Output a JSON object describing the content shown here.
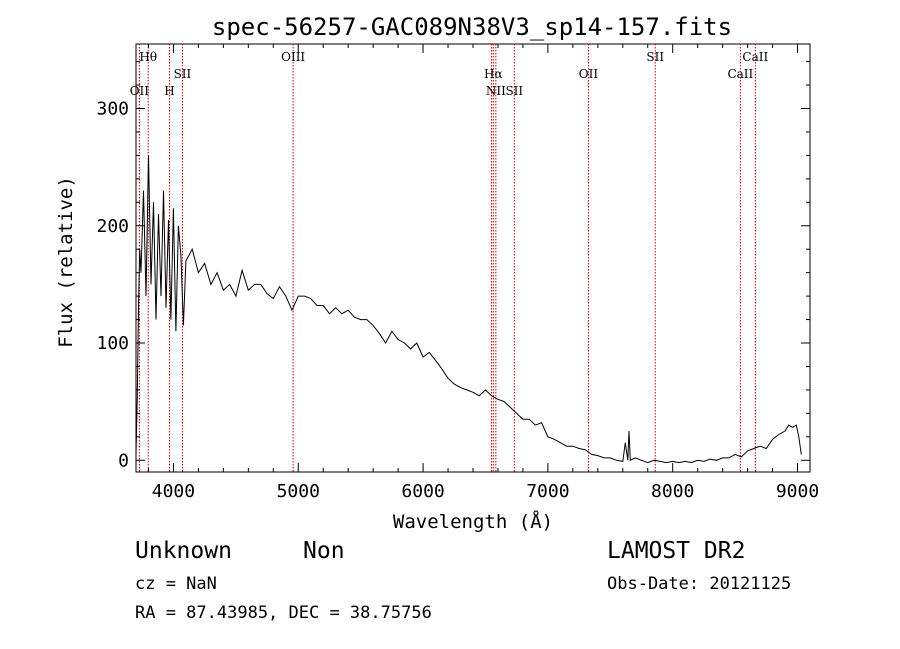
{
  "chart_data": {
    "type": "line",
    "title": "spec-56257-GAC089N38V3_sp14-157.fits",
    "xlabel": "Wavelength (Å)",
    "ylabel": "Flux (relative)",
    "xlim": [
      3700,
      9100
    ],
    "ylim": [
      -10,
      355
    ],
    "xticks": [
      4000,
      5000,
      6000,
      7000,
      8000,
      9000
    ],
    "yticks": [
      0,
      100,
      200,
      300
    ],
    "spectrum": {
      "x": [
        3700,
        3710,
        3720,
        3730,
        3740,
        3760,
        3780,
        3800,
        3820,
        3840,
        3860,
        3880,
        3900,
        3920,
        3940,
        3960,
        3980,
        4000,
        4020,
        4040,
        4060,
        4080,
        4100,
        4150,
        4200,
        4250,
        4300,
        4350,
        4400,
        4450,
        4500,
        4550,
        4600,
        4650,
        4700,
        4750,
        4800,
        4850,
        4900,
        4950,
        5000,
        5050,
        5100,
        5150,
        5200,
        5250,
        5300,
        5350,
        5400,
        5450,
        5500,
        5550,
        5600,
        5650,
        5700,
        5750,
        5800,
        5850,
        5900,
        5950,
        6000,
        6050,
        6100,
        6150,
        6200,
        6250,
        6300,
        6350,
        6400,
        6450,
        6500,
        6550,
        6600,
        6650,
        6700,
        6750,
        6800,
        6850,
        6900,
        6950,
        7000,
        7050,
        7100,
        7150,
        7200,
        7250,
        7300,
        7350,
        7400,
        7450,
        7500,
        7550,
        7600,
        7620,
        7640,
        7650,
        7660,
        7680,
        7700,
        7750,
        7800,
        7850,
        7900,
        7950,
        8000,
        8050,
        8100,
        8150,
        8200,
        8250,
        8300,
        8350,
        8400,
        8450,
        8500,
        8550,
        8600,
        8650,
        8700,
        8750,
        8800,
        8850,
        8900,
        8930,
        8960,
        8990,
        9010,
        9030
      ],
      "y": [
        5,
        50,
        130,
        180,
        160,
        230,
        140,
        260,
        150,
        220,
        120,
        210,
        140,
        230,
        130,
        205,
        120,
        215,
        110,
        200,
        175,
        115,
        170,
        180,
        160,
        168,
        150,
        160,
        145,
        150,
        140,
        162,
        145,
        150,
        150,
        142,
        138,
        148,
        140,
        128,
        140,
        140,
        138,
        132,
        132,
        125,
        130,
        125,
        128,
        122,
        120,
        120,
        115,
        108,
        100,
        110,
        103,
        100,
        95,
        100,
        88,
        92,
        85,
        78,
        70,
        65,
        62,
        60,
        58,
        55,
        60,
        55,
        52,
        50,
        45,
        40,
        35,
        35,
        30,
        32,
        20,
        18,
        15,
        12,
        12,
        10,
        9,
        5,
        4,
        2,
        2,
        0,
        -1,
        15,
        0,
        25,
        0,
        1,
        2,
        0,
        -2,
        0,
        -1,
        -2,
        -1,
        -2,
        -1,
        -2,
        0,
        -1,
        1,
        0,
        2,
        2,
        5,
        3,
        8,
        10,
        12,
        10,
        18,
        22,
        25,
        30,
        28,
        30,
        20,
        5
      ]
    },
    "line_labels": [
      {
        "name": "OII",
        "x": 3727,
        "row": 3
      },
      {
        "name": "Hθ",
        "x": 3798,
        "row": 1
      },
      {
        "name": "H",
        "x": 3968,
        "row": 3
      },
      {
        "name": "SII",
        "x": 4072,
        "row": 2
      },
      {
        "name": "OIII",
        "x": 4959,
        "row": 1
      },
      {
        "name": "Hα",
        "x": 6563,
        "row": 2
      },
      {
        "name": "NII",
        "x": 6583,
        "row": 3
      },
      {
        "name": "SII",
        "x": 6731,
        "row": 3
      },
      {
        "name": "OII",
        "x": 7325,
        "row": 2
      },
      {
        "name": "SII",
        "x": 7860,
        "row": 1
      },
      {
        "name": "CaII",
        "x": 8542,
        "row": 2
      },
      {
        "name": "CaII",
        "x": 8662,
        "row": 1
      }
    ],
    "marker_lines": [
      3727,
      3798,
      3968,
      4072,
      4959,
      6548,
      6563,
      6583,
      6731,
      7325,
      7860,
      8542,
      8662
    ]
  },
  "info": {
    "class": "Unknown",
    "subclass": "Non",
    "survey": "LAMOST DR2",
    "cz": "cz = NaN",
    "obs_date": "Obs-Date: 20121125",
    "coords": "RA =  87.43985, DEC =  38.75756"
  },
  "colors": {
    "line": "#000000",
    "marker": "#cc0000",
    "background": "#ffffff"
  }
}
